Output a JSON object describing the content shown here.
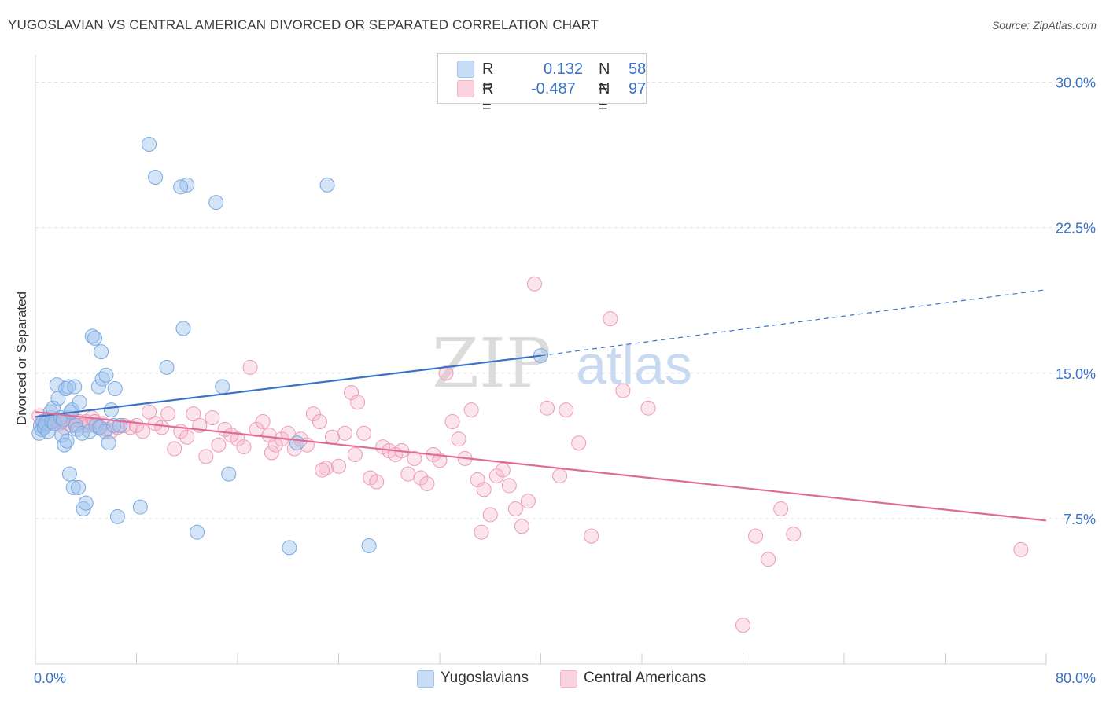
{
  "header": {
    "title": "YUGOSLAVIAN VS CENTRAL AMERICAN DIVORCED OR SEPARATED CORRELATION CHART",
    "source": "Source: ZipAtlas.com"
  },
  "watermark": {
    "zip": "ZIP",
    "atlas": "atlas"
  },
  "legend_top": {
    "rows": [
      {
        "r_label": "R =",
        "r_value": "0.132",
        "n_label": "N =",
        "n_value": "58",
        "color": "#9ec3ee"
      },
      {
        "r_label": "R =",
        "r_value": "-0.487",
        "n_label": "N =",
        "n_value": "97",
        "color": "#f6b3c8"
      }
    ]
  },
  "legend_bottom": {
    "items": [
      {
        "label": "Yugoslavians",
        "color": "#9ec3ee"
      },
      {
        "label": "Central Americans",
        "color": "#f6b3c8"
      }
    ]
  },
  "chart_data": {
    "type": "scatter",
    "title": "YUGOSLAVIAN VS CENTRAL AMERICAN DIVORCED OR SEPARATED CORRELATION CHART",
    "xlabel": "",
    "ylabel": "Divorced or Separated",
    "xlim": [
      0,
      80
    ],
    "ylim": [
      0,
      31.4
    ],
    "x_tick_labels": [
      "0.0%",
      "80.0%"
    ],
    "y_ticks": [
      7.5,
      15.0,
      22.5,
      30.0
    ],
    "y_tick_labels": [
      "7.5%",
      "15.0%",
      "22.5%",
      "30.0%"
    ],
    "grid": true,
    "colors": {
      "blue": "#3a72c8",
      "pink": "#e06c96",
      "blue_fill": "#9ec3ee",
      "pink_fill": "#f6b3c8",
      "tick_text": "#3a72c8"
    },
    "series": [
      {
        "name": "Yugoslavians",
        "color": "#3a72c8",
        "trend": {
          "x": [
            0.0,
            40.0
          ],
          "y": [
            12.75,
            15.9
          ],
          "dashed_extension": {
            "x": [
              40.0,
              80.0
            ],
            "y": [
              15.9,
              19.3
            ]
          }
        },
        "points": [
          [
            0.3,
            11.9
          ],
          [
            0.4,
            12.3
          ],
          [
            0.5,
            12.1
          ],
          [
            0.6,
            12.5
          ],
          [
            0.7,
            12.2
          ],
          [
            0.8,
            12.4
          ],
          [
            1.0,
            12.0
          ],
          [
            1.2,
            13.0
          ],
          [
            1.3,
            12.5
          ],
          [
            1.4,
            13.2
          ],
          [
            1.5,
            12.4
          ],
          [
            1.7,
            14.4
          ],
          [
            1.8,
            13.7
          ],
          [
            2.0,
            12.7
          ],
          [
            2.1,
            11.8
          ],
          [
            2.2,
            12.6
          ],
          [
            2.3,
            11.3
          ],
          [
            2.4,
            14.2
          ],
          [
            2.5,
            11.5
          ],
          [
            2.6,
            14.3
          ],
          [
            2.7,
            9.8
          ],
          [
            2.8,
            13.0
          ],
          [
            2.9,
            13.1
          ],
          [
            3.0,
            9.1
          ],
          [
            3.1,
            14.3
          ],
          [
            3.2,
            12.3
          ],
          [
            3.3,
            12.1
          ],
          [
            3.4,
            9.1
          ],
          [
            3.5,
            13.5
          ],
          [
            3.7,
            11.9
          ],
          [
            3.8,
            8.0
          ],
          [
            4.0,
            8.3
          ],
          [
            4.3,
            12.0
          ],
          [
            4.5,
            16.9
          ],
          [
            4.7,
            16.8
          ],
          [
            4.8,
            12.3
          ],
          [
            5.0,
            14.3
          ],
          [
            5.1,
            12.2
          ],
          [
            5.2,
            16.1
          ],
          [
            5.3,
            14.7
          ],
          [
            5.5,
            12.0
          ],
          [
            5.6,
            14.9
          ],
          [
            5.8,
            11.4
          ],
          [
            6.0,
            13.1
          ],
          [
            6.2,
            12.3
          ],
          [
            6.3,
            14.2
          ],
          [
            6.5,
            7.6
          ],
          [
            6.7,
            12.3
          ],
          [
            8.3,
            8.1
          ],
          [
            10.4,
            15.3
          ],
          [
            11.7,
            17.3
          ],
          [
            12.0,
            24.7
          ],
          [
            12.8,
            6.8
          ],
          [
            14.3,
            23.8
          ],
          [
            14.8,
            14.3
          ],
          [
            15.3,
            9.8
          ],
          [
            20.1,
            6.0
          ],
          [
            20.7,
            11.4
          ],
          [
            23.1,
            24.7
          ],
          [
            26.4,
            6.1
          ],
          [
            40.0,
            15.9
          ],
          [
            11.5,
            24.6
          ],
          [
            9.5,
            25.1
          ],
          [
            9.0,
            26.8
          ]
        ]
      },
      {
        "name": "Central Americans",
        "color": "#e06c96",
        "trend": {
          "x": [
            0.0,
            80.0
          ],
          "y": [
            13.0,
            7.4
          ]
        },
        "points": [
          [
            0.3,
            12.8
          ],
          [
            0.5,
            12.5
          ],
          [
            0.7,
            12.3
          ],
          [
            0.9,
            12.6
          ],
          [
            1.1,
            12.4
          ],
          [
            1.3,
            12.7
          ],
          [
            1.5,
            12.5
          ],
          [
            1.7,
            12.6
          ],
          [
            1.9,
            12.4
          ],
          [
            2.1,
            12.5
          ],
          [
            2.3,
            12.2
          ],
          [
            2.6,
            12.7
          ],
          [
            2.8,
            12.3
          ],
          [
            3.0,
            12.6
          ],
          [
            3.2,
            12.4
          ],
          [
            3.5,
            12.5
          ],
          [
            3.8,
            12.3
          ],
          [
            4.0,
            12.5
          ],
          [
            4.2,
            12.3
          ],
          [
            4.5,
            12.7
          ],
          [
            4.7,
            12.5
          ],
          [
            5.0,
            12.2
          ],
          [
            5.3,
            12.4
          ],
          [
            5.6,
            12.1
          ],
          [
            6.0,
            12.0
          ],
          [
            6.5,
            12.2
          ],
          [
            7.0,
            12.3
          ],
          [
            7.5,
            12.2
          ],
          [
            8.0,
            12.3
          ],
          [
            8.5,
            12.0
          ],
          [
            9.0,
            13.0
          ],
          [
            9.5,
            12.4
          ],
          [
            10.0,
            12.2
          ],
          [
            10.5,
            12.9
          ],
          [
            11.0,
            11.1
          ],
          [
            11.5,
            12.0
          ],
          [
            12.0,
            11.7
          ],
          [
            12.5,
            12.9
          ],
          [
            13.0,
            12.3
          ],
          [
            13.5,
            10.7
          ],
          [
            14.0,
            12.7
          ],
          [
            14.5,
            11.3
          ],
          [
            15.0,
            12.1
          ],
          [
            15.5,
            11.8
          ],
          [
            16.0,
            11.6
          ],
          [
            16.5,
            11.2
          ],
          [
            17.0,
            15.3
          ],
          [
            17.5,
            12.1
          ],
          [
            18.0,
            12.5
          ],
          [
            18.5,
            11.8
          ],
          [
            19.0,
            11.3
          ],
          [
            19.5,
            11.6
          ],
          [
            20.0,
            11.9
          ],
          [
            20.5,
            11.1
          ],
          [
            21.0,
            11.6
          ],
          [
            21.5,
            11.3
          ],
          [
            22.0,
            12.9
          ],
          [
            22.5,
            12.5
          ],
          [
            23.0,
            10.1
          ],
          [
            23.5,
            11.7
          ],
          [
            24.0,
            10.2
          ],
          [
            24.5,
            11.9
          ],
          [
            25.0,
            14.0
          ],
          [
            25.5,
            13.5
          ],
          [
            26.0,
            11.9
          ],
          [
            26.5,
            9.6
          ],
          [
            27.0,
            9.4
          ],
          [
            27.5,
            11.2
          ],
          [
            28.0,
            11.0
          ],
          [
            28.5,
            10.8
          ],
          [
            29.0,
            11.0
          ],
          [
            29.5,
            9.8
          ],
          [
            30.0,
            10.6
          ],
          [
            30.5,
            9.6
          ],
          [
            31.0,
            9.3
          ],
          [
            31.5,
            10.8
          ],
          [
            32.0,
            10.5
          ],
          [
            32.5,
            15.0
          ],
          [
            33.0,
            12.5
          ],
          [
            33.5,
            11.6
          ],
          [
            34.0,
            10.6
          ],
          [
            34.5,
            13.1
          ],
          [
            35.0,
            9.5
          ],
          [
            35.5,
            9.0
          ],
          [
            36.0,
            7.7
          ],
          [
            36.5,
            9.7
          ],
          [
            37.0,
            10.0
          ],
          [
            37.5,
            9.2
          ],
          [
            38.0,
            8.0
          ],
          [
            38.5,
            7.1
          ],
          [
            39.0,
            8.4
          ],
          [
            39.5,
            19.6
          ],
          [
            40.5,
            13.2
          ],
          [
            41.5,
            9.7
          ],
          [
            42.0,
            13.1
          ],
          [
            43.0,
            11.4
          ],
          [
            44.0,
            6.6
          ],
          [
            45.5,
            17.8
          ],
          [
            46.5,
            14.1
          ],
          [
            48.5,
            13.2
          ],
          [
            56.0,
            2.0
          ],
          [
            57.0,
            6.6
          ],
          [
            58.0,
            5.4
          ],
          [
            59.0,
            8.0
          ],
          [
            60.0,
            6.7
          ],
          [
            78.0,
            5.9
          ],
          [
            35.3,
            6.8
          ],
          [
            25.3,
            10.8
          ],
          [
            22.7,
            10.0
          ],
          [
            18.7,
            10.9
          ]
        ]
      }
    ]
  }
}
